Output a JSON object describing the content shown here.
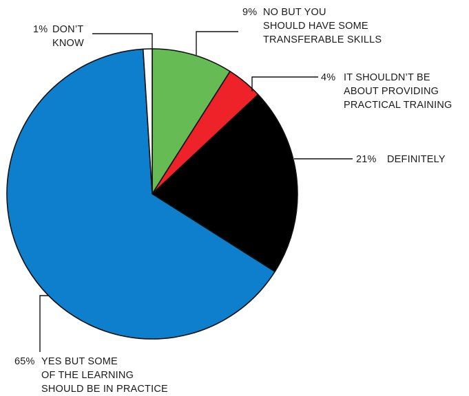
{
  "chart_data": {
    "type": "pie",
    "start_angle_deg": 0,
    "direction": "clockwise",
    "slices": [
      {
        "pct_label": "9%",
        "value": 9,
        "color": "#66bb55",
        "text_lines": [
          "NO BUT YOU",
          "SHOULD HAVE SOME",
          "TRANSFERABLE SKILLS"
        ]
      },
      {
        "pct_label": "4%",
        "value": 4,
        "color": "#ee2229",
        "text_lines": [
          "IT SHOULDN’T BE",
          "ABOUT PROVIDING",
          "PRACTICAL TRAINING"
        ]
      },
      {
        "pct_label": "21%",
        "value": 21,
        "color": "#000000",
        "text_lines": [
          "DEFINITELY"
        ]
      },
      {
        "pct_label": "65%",
        "value": 65,
        "color": "#0d7fcc",
        "text_lines": [
          "YES BUT SOME",
          "OF THE LEARNING",
          "SHOULD BE IN PRACTICE"
        ]
      },
      {
        "pct_label": "1%",
        "value": 1,
        "color": "#ffffff",
        "text_lines": [
          "DON’T",
          "KNOW"
        ]
      }
    ]
  }
}
